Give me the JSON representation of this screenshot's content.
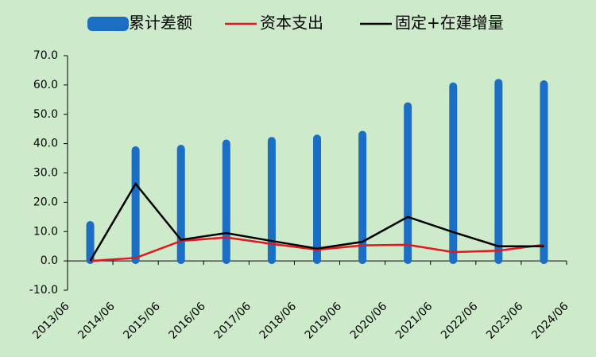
{
  "chart_data": {
    "type": "bar_line",
    "categories": [
      "2013/06",
      "2014/06",
      "2015/06",
      "2016/06",
      "2017/06",
      "2018/06",
      "2019/06",
      "2020/06",
      "2021/06",
      "2022/06",
      "2023/06",
      "2024/06"
    ],
    "series": [
      {
        "name": "累计差额",
        "color": "#1a6ec4",
        "kind": "bar",
        "values": [
          12.5,
          38,
          38.5,
          40.3,
          41.2,
          42,
          43.3,
          53,
          59.8,
          61,
          60.5,
          null
        ]
      },
      {
        "name": "资本支出",
        "color": "#e8161c",
        "kind": "line",
        "values": [
          0,
          1,
          6.8,
          8,
          5.8,
          3.8,
          5.3,
          5.5,
          3,
          3.5,
          5.5,
          null
        ]
      },
      {
        "name": "固定+在建增量",
        "color": "#000000",
        "kind": "line",
        "values": [
          0,
          26.3,
          7.2,
          9.5,
          6.8,
          4.2,
          6.5,
          15,
          9.8,
          5,
          5,
          null
        ]
      }
    ],
    "ylim": [
      -10,
      70
    ],
    "yticks": [
      {
        "value": -10,
        "label": "-10.0"
      },
      {
        "value": 0,
        "label": "0.0"
      },
      {
        "value": 10,
        "label": "10.0"
      },
      {
        "value": 20,
        "label": "20.0"
      },
      {
        "value": 30,
        "label": "30.0"
      },
      {
        "value": 40,
        "label": "40.0"
      },
      {
        "value": 50,
        "label": "50.0"
      },
      {
        "value": 60,
        "label": "60.0"
      },
      {
        "value": 70,
        "label": "70.0"
      }
    ]
  }
}
